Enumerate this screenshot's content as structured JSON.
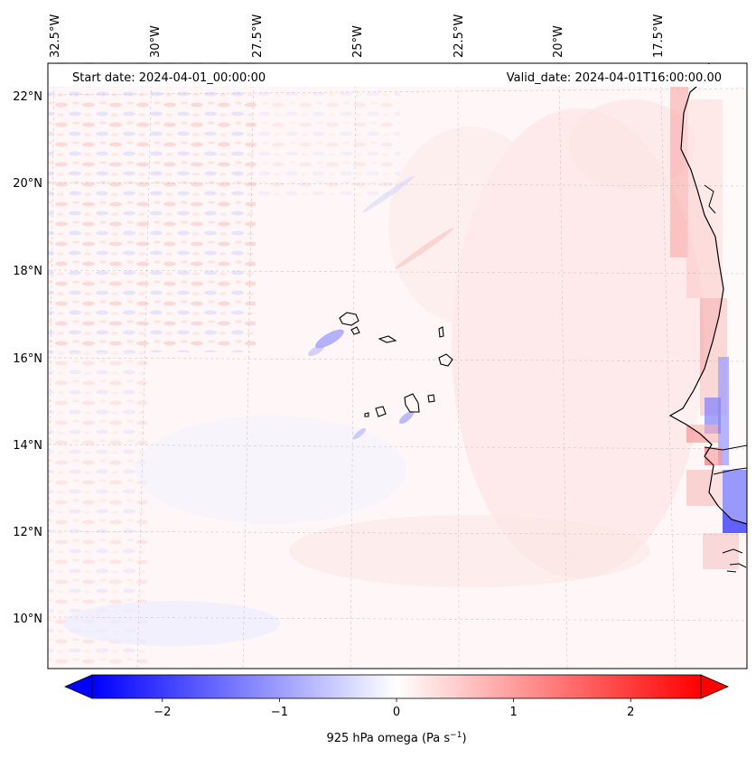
{
  "header": {
    "start_date": "Start date: 2024-04-01_00:00:00",
    "valid_date": "Valid_date: 2024-04-01T16:00:00.00"
  },
  "map": {
    "longitude_labels": [
      "32.5°W",
      "30°W",
      "27.5°W",
      "25°W",
      "22.5°W",
      "20°W",
      "17.5°W"
    ],
    "latitude_labels": [
      "22°N",
      "20°N",
      "18°N",
      "16°N",
      "14°N",
      "12°N",
      "10°N"
    ],
    "extent": {
      "lon_min": -33.0,
      "lon_max": -16.2,
      "lat_min": 8.9,
      "lat_max": 22.7
    }
  },
  "colorbar": {
    "label_main": "925 hPa omega (Pa s",
    "label_sup": "−1",
    "label_close": ")",
    "ticks": [
      "−2",
      "−1",
      "0",
      "1",
      "2"
    ],
    "tick_values": [
      -2,
      -1,
      0,
      1,
      2
    ],
    "vmin": -2.6,
    "vmax": 2.6,
    "cmap": "bwr",
    "color_low": "#0000ff",
    "color_mid": "#ffffff",
    "color_high": "#ff0000"
  }
}
